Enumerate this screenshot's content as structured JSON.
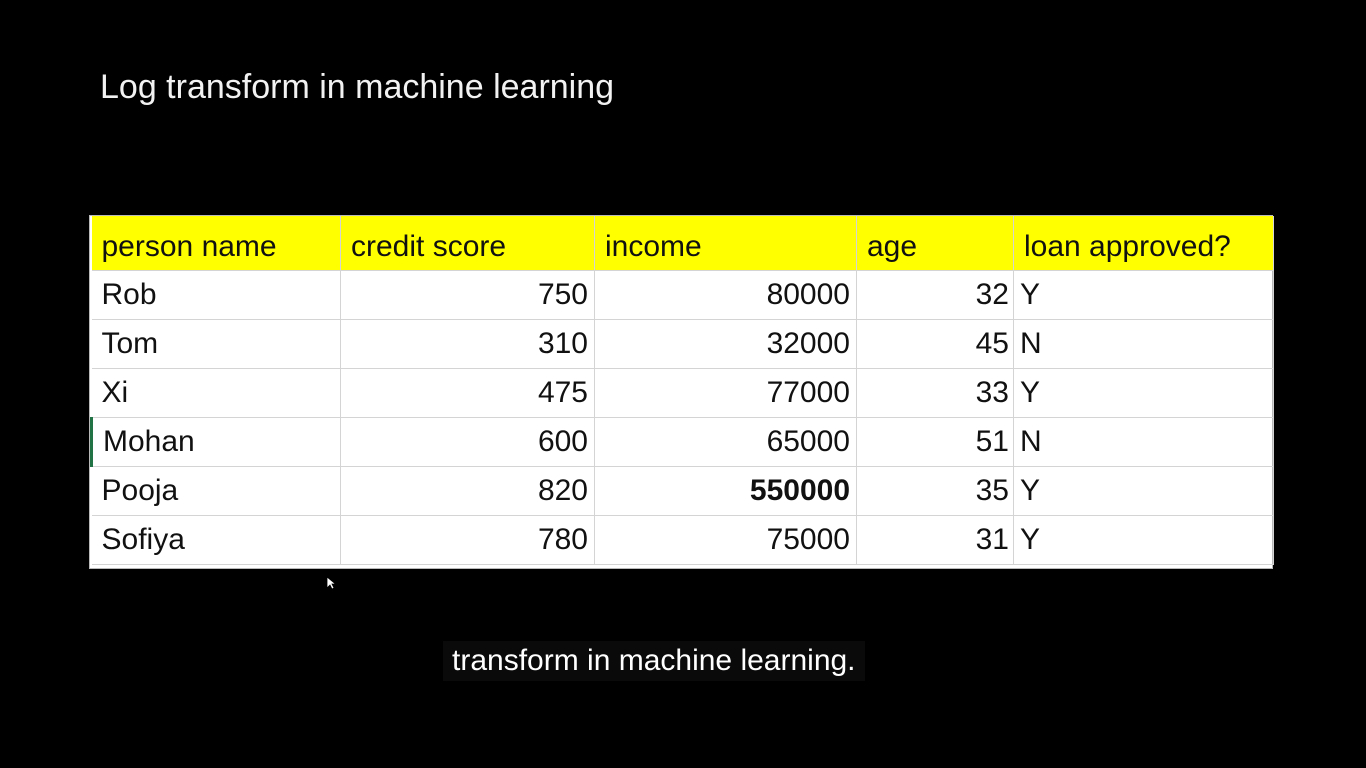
{
  "slide": {
    "title": "Log transform in machine learning"
  },
  "table": {
    "columns": [
      "person name",
      "credit score",
      "income",
      "age",
      "loan approved?"
    ],
    "rows": [
      [
        "Rob",
        "750",
        "80000",
        "32",
        "Y"
      ],
      [
        "Tom",
        "310",
        "32000",
        "45",
        "N"
      ],
      [
        "Xi",
        "475",
        "77000",
        "33",
        "Y"
      ],
      [
        "Mohan",
        "600",
        "65000",
        "51",
        "N"
      ],
      [
        "Pooja",
        "820",
        "550000",
        "35",
        "Y"
      ],
      [
        "Sofiya",
        "780",
        "75000",
        "31",
        "Y"
      ]
    ]
  },
  "caption": {
    "text": "transform in machine learning."
  },
  "colors": {
    "header_fill": "#ffff00",
    "background": "#000000"
  },
  "icons": {
    "cursor": "mouse-pointer-icon"
  }
}
